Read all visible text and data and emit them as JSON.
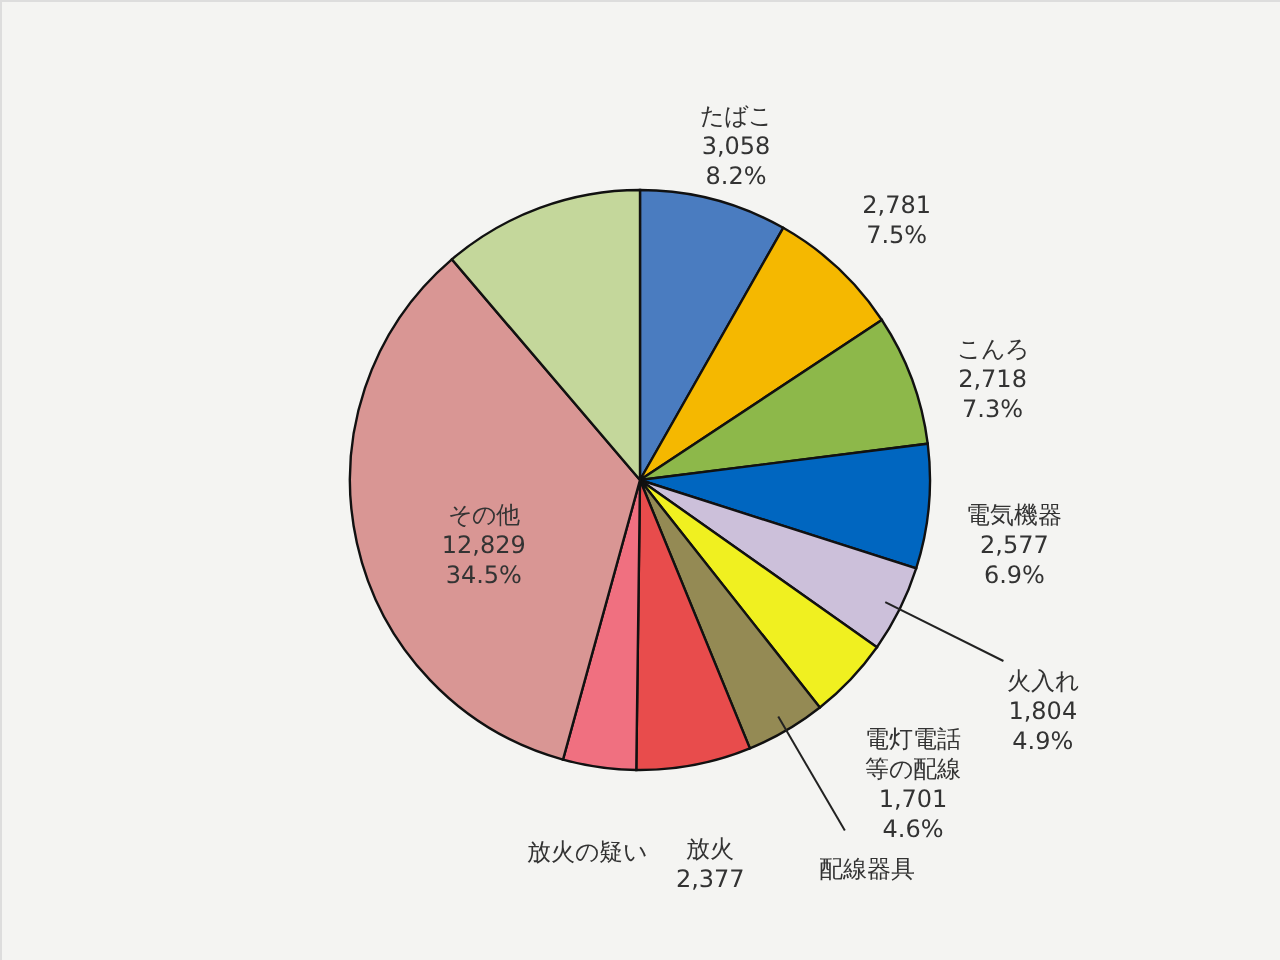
{
  "chart_data": {
    "type": "pie",
    "categories": [
      "たばこ",
      null,
      "こんろ",
      "電気機器",
      "火入れ",
      "電灯電話等の配線",
      "配線器具",
      "放火",
      "放火の疑い",
      "その他",
      null
    ],
    "values": [
      3058,
      2781,
      2718,
      2577,
      1804,
      1701,
      1660,
      2377,
      1515,
      12829,
      4180
    ],
    "value_labels": [
      "3,058\n8.2%",
      "2,781\n7.5%",
      "2,718\n7.3%",
      "2,577\n6.9%",
      "1,804\n4.9%",
      "1,701\n4.6%",
      null,
      "2,377",
      null,
      "12,829\n34.5%",
      null
    ],
    "colors": [
      "#4a7cc0",
      "#f5b800",
      "#8db84a",
      "#0066c0",
      "#ccc0da",
      "#f0f020",
      "#948a54",
      "#e84c4c",
      "#f07080",
      "#d99694",
      "#c4d79b"
    ]
  }
}
